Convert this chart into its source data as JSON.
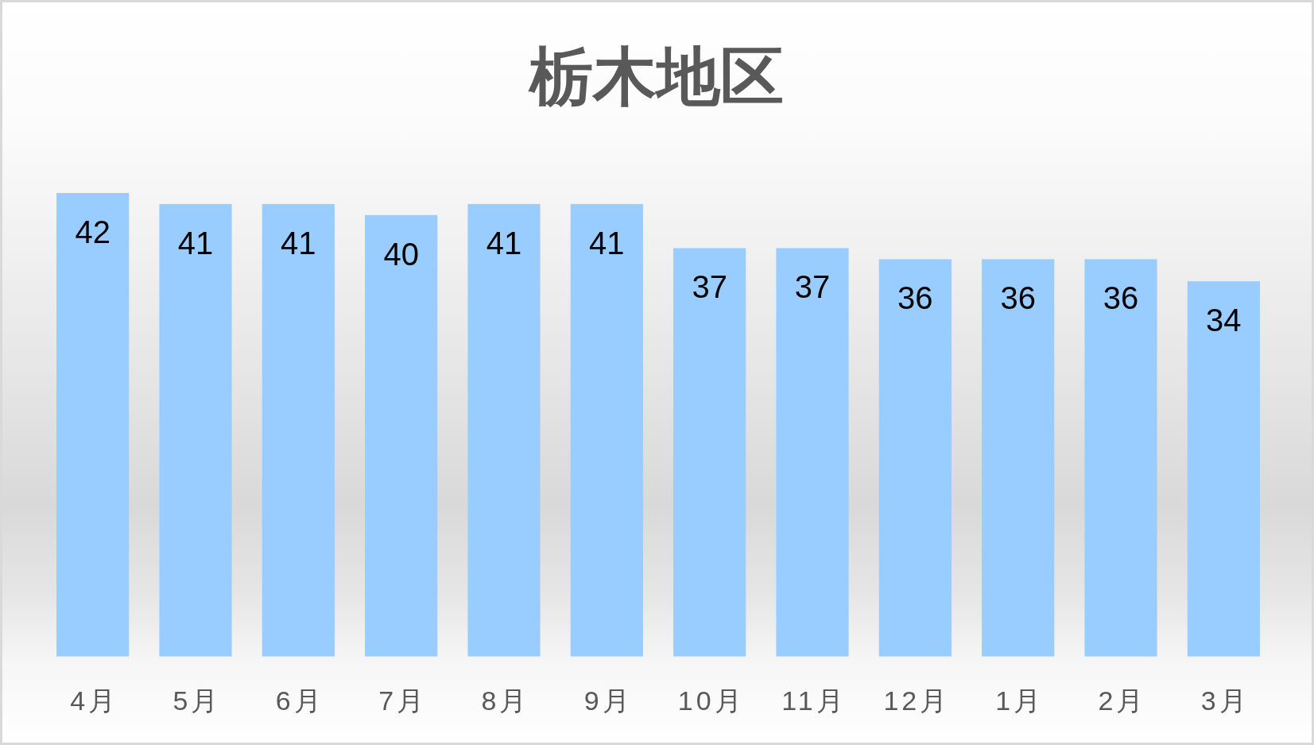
{
  "chart_data": {
    "type": "bar",
    "title": "栃木地区",
    "categories": [
      "4月",
      "5月",
      "6月",
      "7月",
      "8月",
      "9月",
      "10月",
      "11月",
      "12月",
      "1月",
      "2月",
      "3月"
    ],
    "values": [
      42,
      41,
      41,
      40,
      41,
      41,
      37,
      37,
      36,
      36,
      36,
      34
    ],
    "color": "#99ccff",
    "data_labels": true
  }
}
